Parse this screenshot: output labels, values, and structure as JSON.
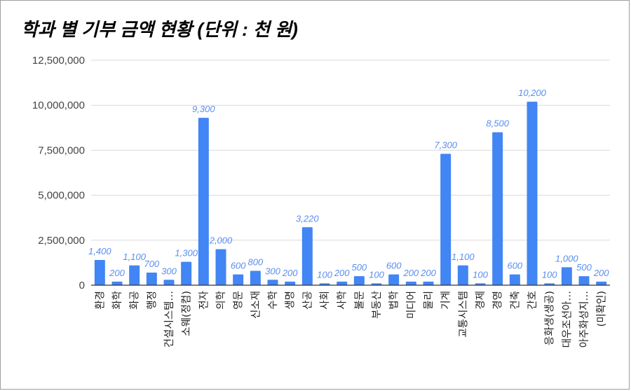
{
  "chart_data": {
    "type": "bar",
    "title": "학과 별 기부 금액 현황 (단위 : 천 원)",
    "xlabel": "",
    "ylabel": "",
    "ylim": [
      0,
      12500000
    ],
    "yticks": [
      "0",
      "2,500,000",
      "5,000,000",
      "7,500,000",
      "10,000,000",
      "12,500,000"
    ],
    "ytick_values": [
      0,
      2500000,
      5000000,
      7500000,
      10000000,
      12500000
    ],
    "grid": true,
    "bar_color": "#4285f4",
    "label_color": "#5b8def",
    "categories": [
      "환경",
      "화학",
      "화공",
      "행정",
      "건설시스템…",
      "소웨(정컴)",
      "전자",
      "의학",
      "영문",
      "신소재",
      "수학",
      "생명",
      "산공",
      "사회",
      "사학",
      "불문",
      "부동산",
      "법학",
      "미디어",
      "물리",
      "기계",
      "교통시스템",
      "경제",
      "경영",
      "건축",
      "간호",
      "응화생(생공)",
      "대우조선아…",
      "아주화성지…",
      "(미확인)"
    ],
    "values": [
      1400000,
      200000,
      1100000,
      700000,
      300000,
      1300000,
      9300000,
      2000000,
      600000,
      800000,
      300000,
      200000,
      3220000,
      100000,
      200000,
      500000,
      100000,
      600000,
      200000,
      200000,
      7300000,
      1100000,
      100000,
      8500000,
      600000,
      10200000,
      100000,
      1000000,
      500000,
      200000
    ],
    "data_labels": [
      "1,400",
      "200",
      "1,100",
      "700",
      "300",
      "1,300",
      "9,300",
      "2,000",
      "600",
      "800",
      "300",
      "200",
      "3,220",
      "100",
      "200",
      "500",
      "100",
      "600",
      "200",
      "200",
      "7,300",
      "1,100",
      "100",
      "8,500",
      "600",
      "10,200",
      "100",
      "1,000",
      "500",
      "200"
    ]
  }
}
